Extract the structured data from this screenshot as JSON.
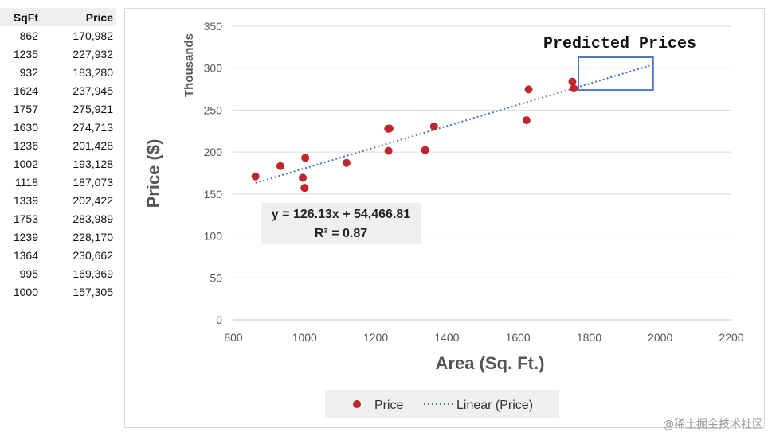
{
  "table": {
    "headers": [
      "SqFt",
      "Price"
    ],
    "rows": [
      [
        "862",
        "170,982"
      ],
      [
        "1235",
        "227,932"
      ],
      [
        "932",
        "183,280"
      ],
      [
        "1624",
        "237,945"
      ],
      [
        "1757",
        "275,921"
      ],
      [
        "1630",
        "274,713"
      ],
      [
        "1236",
        "201,428"
      ],
      [
        "1002",
        "193,128"
      ],
      [
        "1118",
        "187,073"
      ],
      [
        "1339",
        "202,422"
      ],
      [
        "1753",
        "283,989"
      ],
      [
        "1239",
        "228,170"
      ],
      [
        "1364",
        "230,662"
      ],
      [
        "995",
        "169,369"
      ],
      [
        "1000",
        "157,305"
      ]
    ]
  },
  "chart_data": {
    "type": "scatter",
    "xlabel": "Area (Sq. Ft.)",
    "ylabel": "Price ($)",
    "y_display_units": "Thousands",
    "xlim": [
      800,
      2200
    ],
    "ylim": [
      0,
      350
    ],
    "x_ticks": [
      800,
      1000,
      1200,
      1400,
      1600,
      1800,
      2000,
      2200
    ],
    "y_ticks": [
      0,
      50,
      100,
      150,
      200,
      250,
      300,
      350
    ],
    "series": [
      {
        "name": "Price",
        "color": "#c0272d",
        "points": [
          [
            862,
            170.982
          ],
          [
            1235,
            227.932
          ],
          [
            932,
            183.28
          ],
          [
            1624,
            237.945
          ],
          [
            1757,
            275.921
          ],
          [
            1630,
            274.713
          ],
          [
            1236,
            201.428
          ],
          [
            1002,
            193.128
          ],
          [
            1118,
            187.073
          ],
          [
            1339,
            202.422
          ],
          [
            1753,
            283.989
          ],
          [
            1239,
            228.17
          ],
          [
            1364,
            230.662
          ],
          [
            995,
            169.369
          ],
          [
            1000,
            157.305
          ]
        ]
      }
    ],
    "trendline": {
      "name": "Linear  (Price)",
      "color": "#4a6fc4",
      "slope": 0.12613,
      "intercept": 54.46681,
      "x_range": [
        862,
        1970
      ],
      "equation": "y = 126.13x + 54,466.81",
      "r2": "R² = 0.87"
    },
    "annotation": {
      "text": "Predicted Prices",
      "box_x": [
        1770,
        1980
      ],
      "box_y": [
        274,
        313
      ],
      "box_color": "#4a78c2"
    },
    "legend": {
      "placement": "bottom-center",
      "entries": [
        "Price",
        "Linear  (Price)"
      ]
    },
    "grid": "horizontal"
  },
  "watermark": "@稀土掘金技术社区"
}
